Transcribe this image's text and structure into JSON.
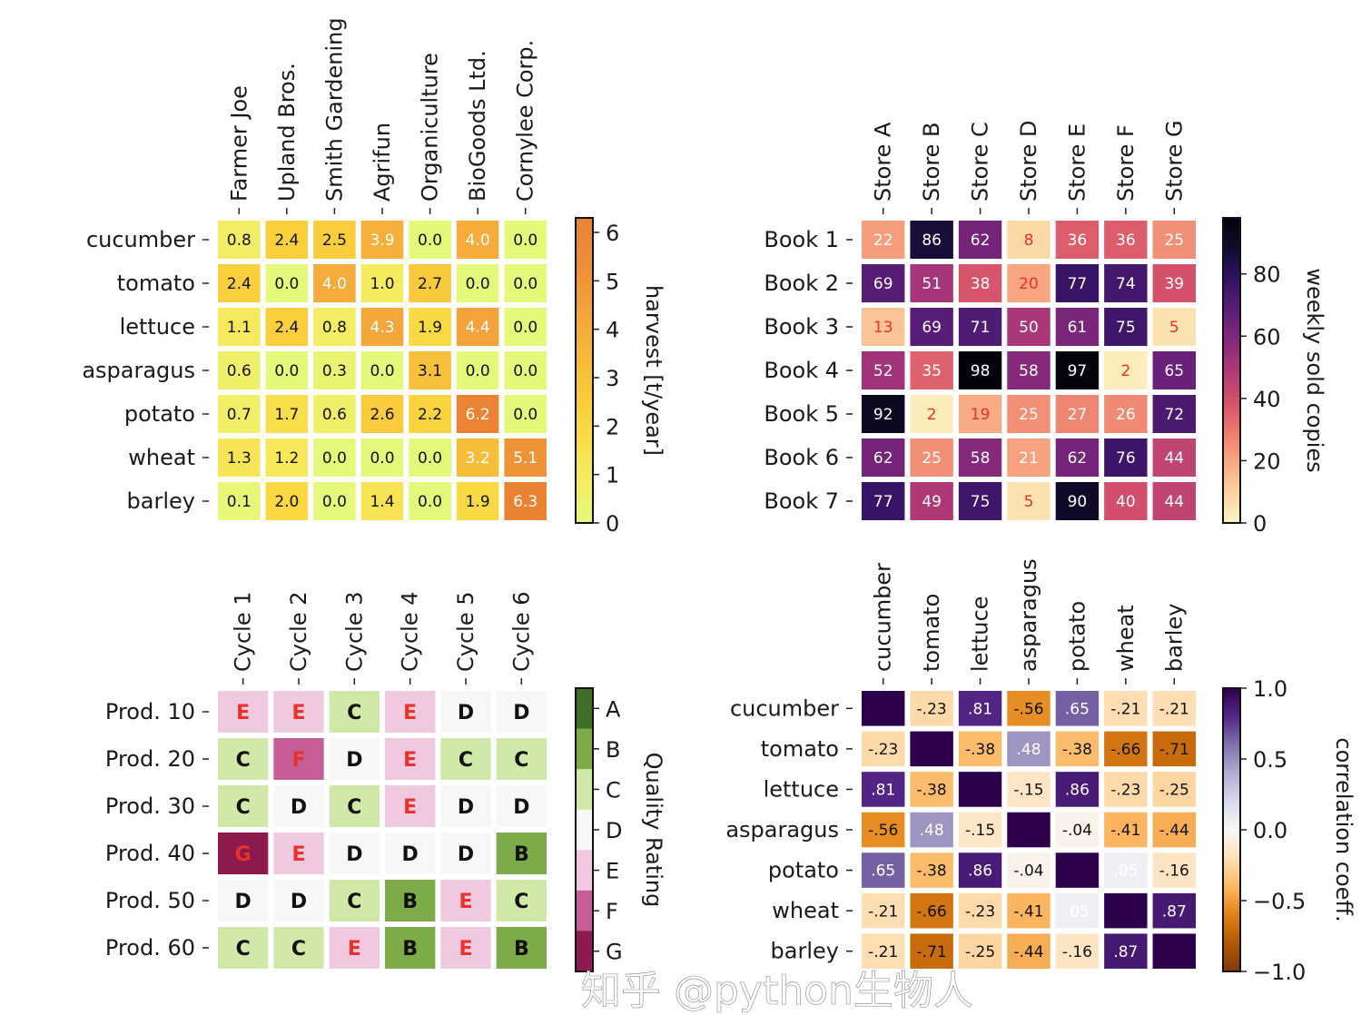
{
  "chart_data": [
    {
      "type": "heatmap",
      "y_labels": [
        "cucumber",
        "tomato",
        "lettuce",
        "asparagus",
        "potato",
        "wheat",
        "barley"
      ],
      "x_labels": [
        "Farmer Joe",
        "Upland Bros.",
        "Smith Gardening",
        "Agrifun",
        "Organiculture",
        "BioGoods Ltd.",
        "Cornylee Corp."
      ],
      "values": [
        [
          0.8,
          2.4,
          2.5,
          3.9,
          0.0,
          4.0,
          0.0
        ],
        [
          2.4,
          0.0,
          4.0,
          1.0,
          2.7,
          0.0,
          0.0
        ],
        [
          1.1,
          2.4,
          0.8,
          4.3,
          1.9,
          4.4,
          0.0
        ],
        [
          0.6,
          0.0,
          0.3,
          0.0,
          3.1,
          0.0,
          0.0
        ],
        [
          0.7,
          1.7,
          0.6,
          2.6,
          2.2,
          6.2,
          0.0
        ],
        [
          1.3,
          1.2,
          0.0,
          0.0,
          0.0,
          3.2,
          5.1
        ],
        [
          0.1,
          2.0,
          0.0,
          1.4,
          0.0,
          1.9,
          6.3
        ]
      ],
      "colormap": "Wistia",
      "range": [
        0,
        6.3
      ],
      "colorbar": {
        "label": "harvest [t/year]",
        "ticks": [
          "0",
          "1",
          "2",
          "3",
          "4",
          "5",
          "6"
        ]
      }
    },
    {
      "type": "heatmap",
      "y_labels": [
        "Book 1",
        "Book 2",
        "Book 3",
        "Book 4",
        "Book 5",
        "Book 6",
        "Book 7"
      ],
      "x_labels": [
        "Store A",
        "Store B",
        "Store C",
        "Store D",
        "Store E",
        "Store F",
        "Store G"
      ],
      "values": [
        [
          22,
          86,
          62,
          8,
          36,
          36,
          25
        ],
        [
          69,
          51,
          38,
          20,
          77,
          74,
          39
        ],
        [
          13,
          69,
          71,
          50,
          61,
          75,
          5
        ],
        [
          52,
          35,
          98,
          58,
          97,
          2,
          65
        ],
        [
          92,
          2,
          19,
          25,
          27,
          26,
          72
        ],
        [
          62,
          25,
          58,
          21,
          62,
          76,
          44
        ],
        [
          77,
          49,
          75,
          5,
          90,
          40,
          44
        ]
      ],
      "colormap": "magma_r",
      "range": [
        0,
        98
      ],
      "colorbar": {
        "label": "weekly sold copies",
        "ticks": [
          "0",
          "20",
          "40",
          "60",
          "80"
        ]
      }
    },
    {
      "type": "heatmap",
      "y_labels": [
        "Prod. 10",
        "Prod. 20",
        "Prod. 30",
        "Prod. 40",
        "Prod. 50",
        "Prod. 60"
      ],
      "x_labels": [
        "Cycle 1",
        "Cycle 2",
        "Cycle 3",
        "Cycle 4",
        "Cycle 5",
        "Cycle 6"
      ],
      "values": [
        [
          "E",
          "E",
          "C",
          "E",
          "D",
          "D"
        ],
        [
          "C",
          "F",
          "D",
          "E",
          "C",
          "C"
        ],
        [
          "C",
          "D",
          "C",
          "E",
          "D",
          "D"
        ],
        [
          "G",
          "E",
          "D",
          "D",
          "D",
          "B"
        ],
        [
          "D",
          "D",
          "C",
          "B",
          "E",
          "C"
        ],
        [
          "C",
          "C",
          "E",
          "B",
          "E",
          "B"
        ]
      ],
      "colormap": "PiYG (discrete)",
      "colors": {
        "A": "#3f6f24",
        "B": "#7cab48",
        "C": "#d0e8a8",
        "D": "#f7f7f7",
        "E": "#f0c8e0",
        "F": "#c65d94",
        "G": "#8c1a4e"
      },
      "colorbar": {
        "label": "Quality Rating",
        "ticks": [
          "A",
          "B",
          "C",
          "D",
          "E",
          "F",
          "G"
        ]
      }
    },
    {
      "type": "heatmap",
      "y_labels": [
        "cucumber",
        "tomato",
        "lettuce",
        "asparagus",
        "potato",
        "wheat",
        "barley"
      ],
      "x_labels": [
        "cucumber",
        "tomato",
        "lettuce",
        "asparagus",
        "potato",
        "wheat",
        "barley"
      ],
      "values": [
        [
          1,
          -0.23,
          0.81,
          -0.56,
          0.65,
          -0.21,
          -0.21
        ],
        [
          -0.23,
          1,
          -0.38,
          0.48,
          -0.38,
          -0.66,
          -0.71
        ],
        [
          0.81,
          -0.38,
          1,
          -0.15,
          0.86,
          -0.23,
          -0.25
        ],
        [
          -0.56,
          0.48,
          -0.15,
          1,
          -0.04,
          -0.41,
          -0.44
        ],
        [
          0.65,
          -0.38,
          0.86,
          -0.04,
          1,
          0.05,
          -0.16
        ],
        [
          -0.21,
          -0.66,
          -0.23,
          -0.41,
          0.05,
          1,
          0.87
        ],
        [
          -0.21,
          -0.71,
          -0.25,
          -0.44,
          -0.16,
          0.87,
          1
        ]
      ],
      "colormap": "PuOr",
      "range": [
        -1,
        1
      ],
      "colorbar": {
        "label": "correlation coeff.",
        "ticks": [
          "−1.0",
          "−0.5",
          "0.0",
          "0.5",
          "1.0"
        ]
      }
    }
  ],
  "watermark": "知乎 @python生物人"
}
